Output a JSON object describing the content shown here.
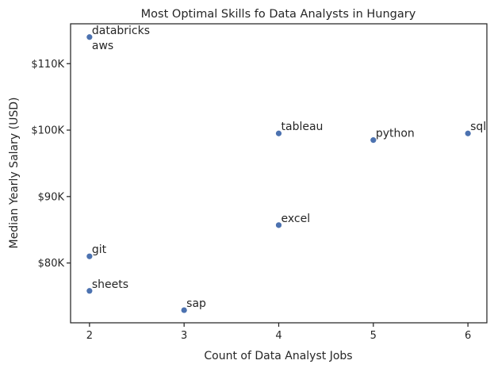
{
  "chart_data": {
    "type": "scatter",
    "title": "Most Optimal Skills fo Data Analysts in Hungary",
    "xlabel": "Count of Data Analyst Jobs",
    "ylabel": "Median Yearly Salary (USD)",
    "xlim": [
      1.8,
      6.2
    ],
    "ylim": [
      71000,
      116000
    ],
    "x_ticks": [
      2,
      3,
      4,
      5,
      6
    ],
    "x_tick_labels": [
      "2",
      "3",
      "4",
      "5",
      "6"
    ],
    "y_ticks": [
      80000,
      90000,
      100000,
      110000
    ],
    "y_tick_labels": [
      "$80K",
      "$90K",
      "$100K",
      "$110K"
    ],
    "grid": false,
    "color": "#4c72b0",
    "points": [
      {
        "label": "databricks",
        "x": 2,
        "y": 114000
      },
      {
        "label": "aws",
        "x": 2,
        "y": 114000
      },
      {
        "label": "tableau",
        "x": 4,
        "y": 99500
      },
      {
        "label": "python",
        "x": 5,
        "y": 98500
      },
      {
        "label": "sql",
        "x": 6,
        "y": 99500
      },
      {
        "label": "excel",
        "x": 4,
        "y": 85700
      },
      {
        "label": "git",
        "x": 2,
        "y": 81000
      },
      {
        "label": "sheets",
        "x": 2,
        "y": 75800
      },
      {
        "label": "sap",
        "x": 3,
        "y": 72900
      }
    ]
  }
}
